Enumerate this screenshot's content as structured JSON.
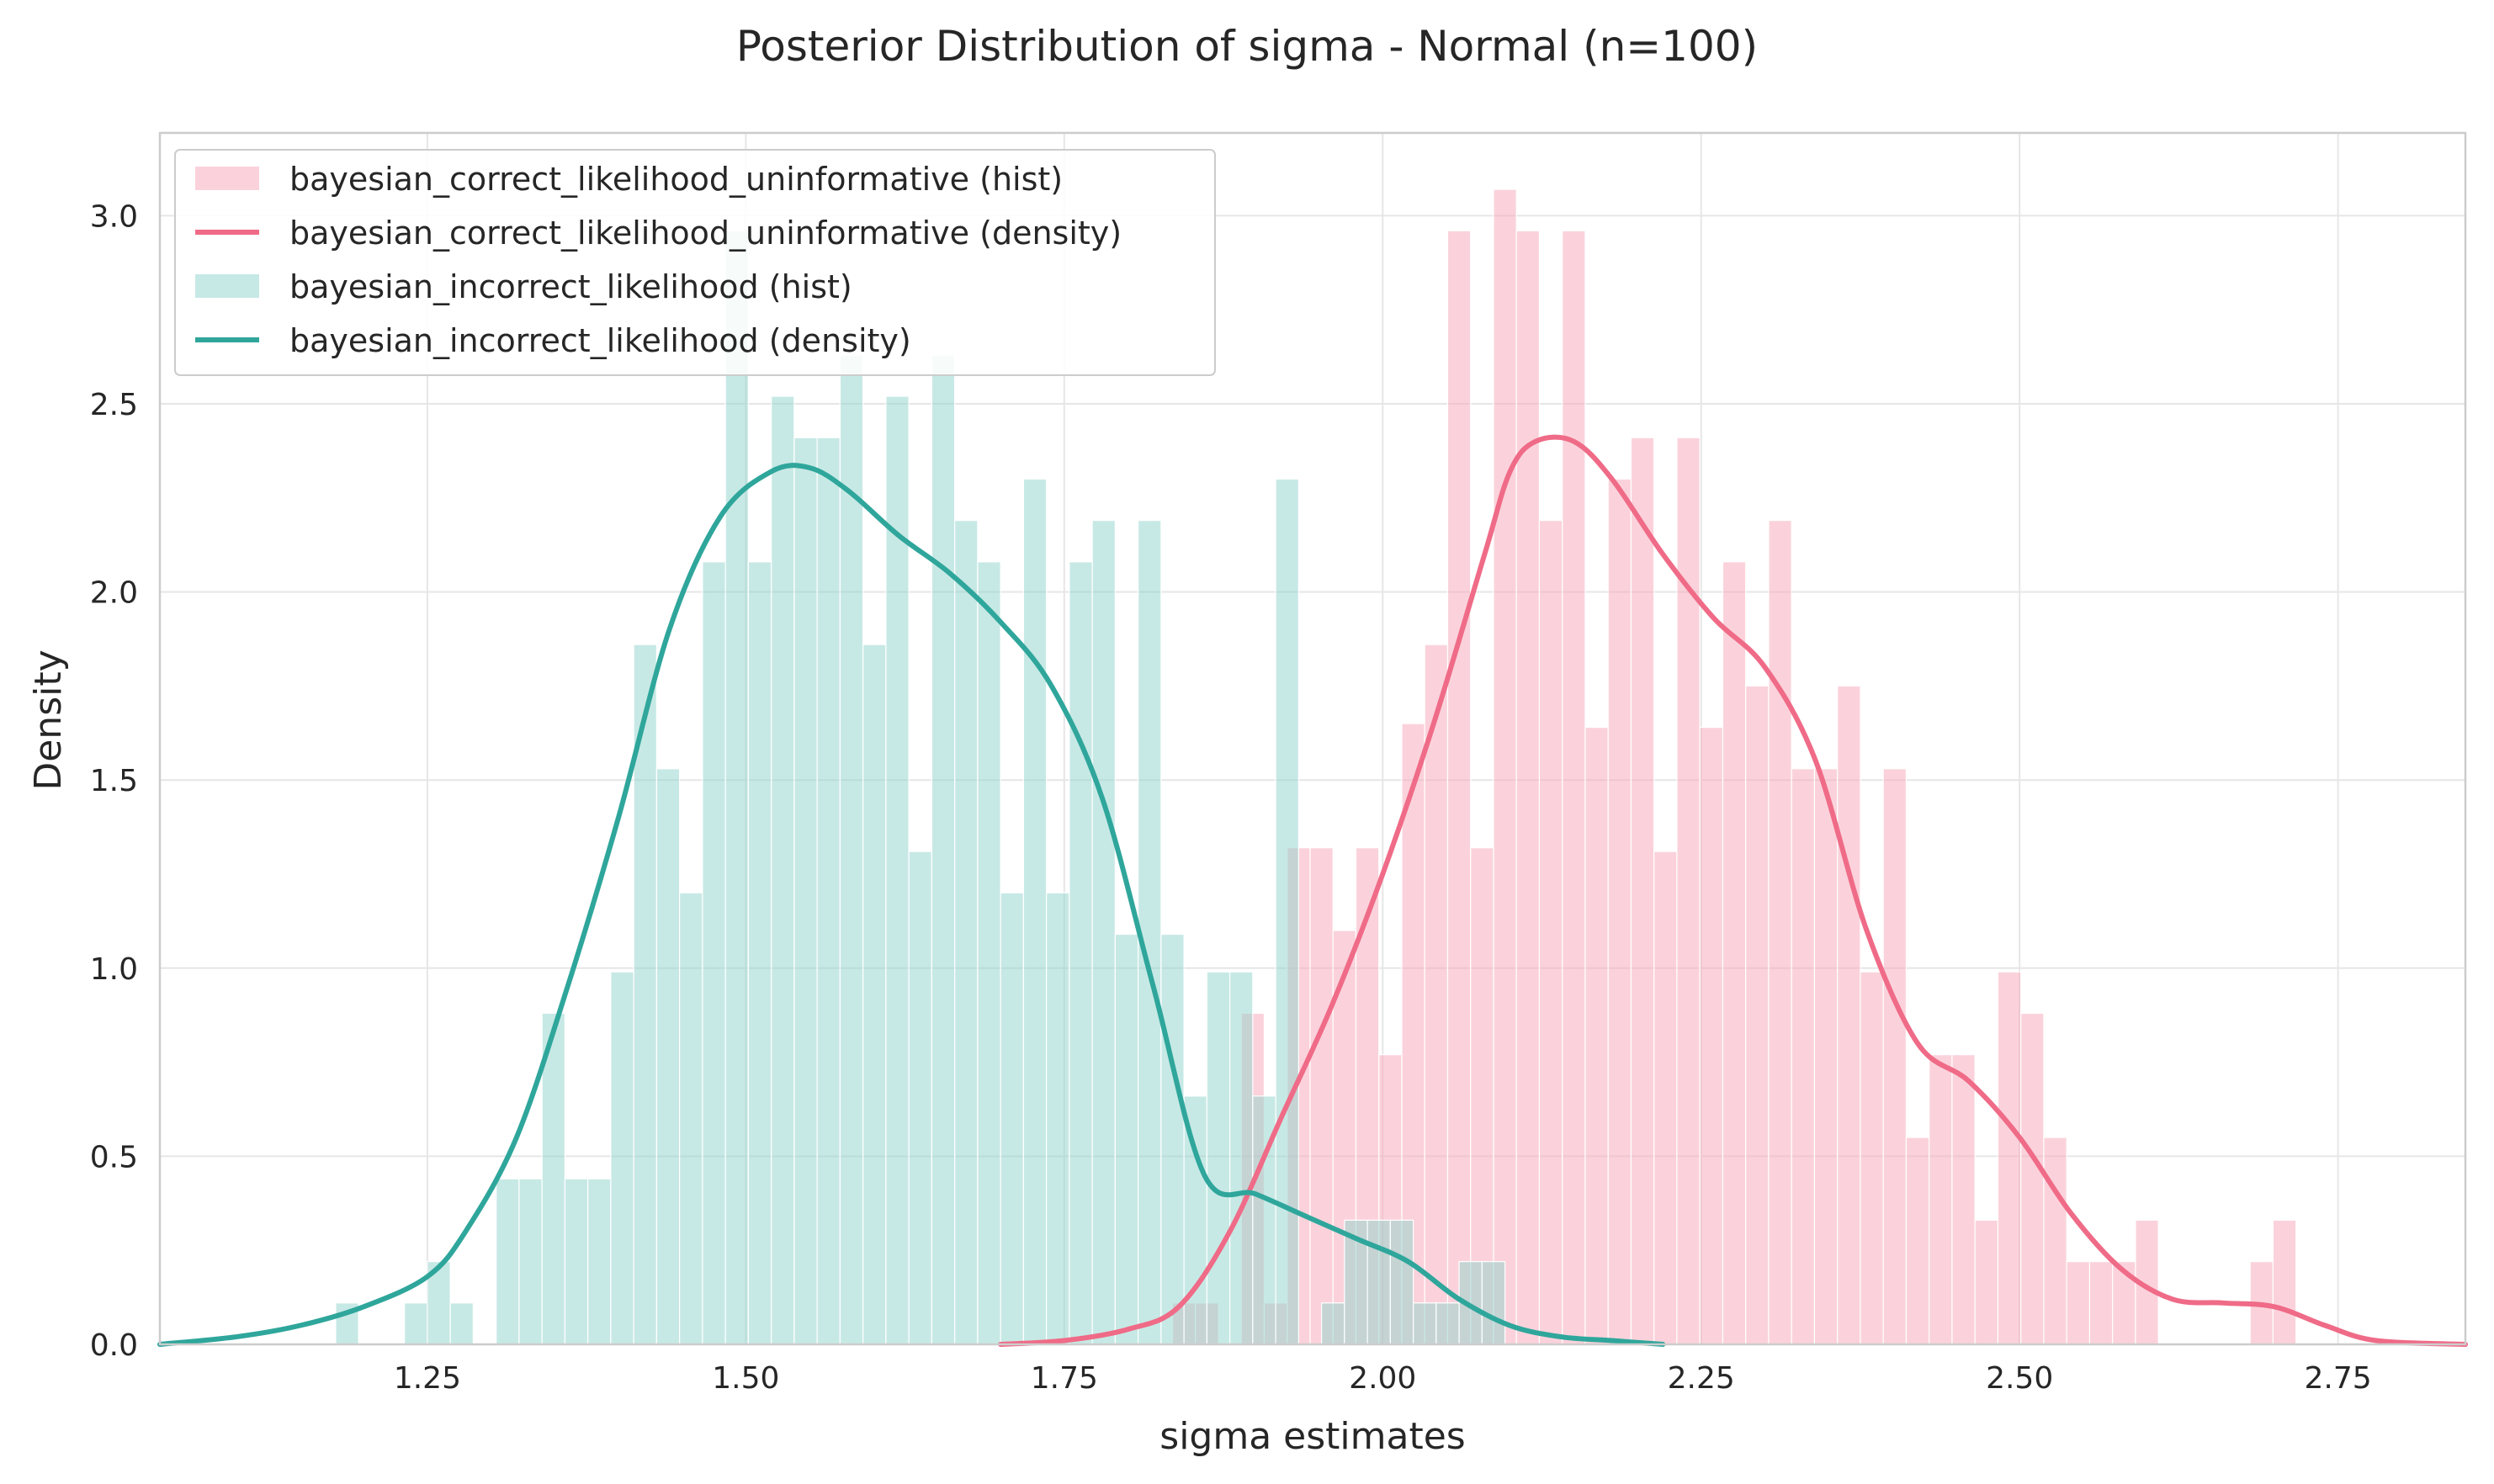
{
  "chart_data": {
    "type": "bar",
    "title": "Posterior Distribution of sigma - Normal (n=100)",
    "xlabel": "sigma estimates",
    "ylabel": "Density",
    "xlim": [
      1.04,
      2.85
    ],
    "ylim": [
      0.0,
      3.22
    ],
    "xticks": [
      1.25,
      1.5,
      1.75,
      2.0,
      2.25,
      2.5,
      2.75
    ],
    "xtick_labels": [
      "1.25",
      "1.50",
      "1.75",
      "2.00",
      "2.25",
      "2.50",
      "2.75"
    ],
    "yticks": [
      0.0,
      0.5,
      1.0,
      1.5,
      2.0,
      2.5,
      3.0
    ],
    "ytick_labels": [
      "0.0",
      "0.5",
      "1.0",
      "1.5",
      "2.0",
      "2.5",
      "3.0"
    ],
    "grid": true,
    "legend_position": "top-left",
    "series": [
      {
        "name": "bayesian_correct_likelihood_uninformative (hist)",
        "kind": "hist",
        "color": "#f7a6b8",
        "bin_width": 0.018,
        "bins_start": [
          1.835,
          1.853,
          1.871,
          1.889,
          1.907,
          1.925,
          1.943,
          1.961,
          1.979,
          1.997,
          2.015,
          2.033,
          2.051,
          2.069,
          2.087,
          2.105,
          2.123,
          2.141,
          2.159,
          2.177,
          2.195,
          2.213,
          2.231,
          2.249,
          2.267,
          2.285,
          2.303,
          2.321,
          2.339,
          2.357,
          2.375,
          2.393,
          2.411,
          2.429,
          2.447,
          2.465,
          2.483,
          2.501,
          2.519,
          2.537,
          2.555,
          2.573,
          2.591,
          2.609,
          2.627,
          2.645,
          2.663,
          2.681,
          2.699
        ],
        "values": [
          0.11,
          0.11,
          0.0,
          0.88,
          0.11,
          1.32,
          1.32,
          1.1,
          1.32,
          0.77,
          1.65,
          1.86,
          2.96,
          1.32,
          3.07,
          2.96,
          2.19,
          2.96,
          1.64,
          2.3,
          2.41,
          1.31,
          2.41,
          1.64,
          2.08,
          1.75,
          2.19,
          1.53,
          1.53,
          1.75,
          0.99,
          1.53,
          0.55,
          0.77,
          0.77,
          0.33,
          0.99,
          0.88,
          0.55,
          0.22,
          0.22,
          0.22,
          0.33,
          0.0,
          0.0,
          0.0,
          0.0,
          0.22,
          0.33
        ]
      },
      {
        "name": "bayesian_correct_likelihood_uninformative (density)",
        "kind": "density",
        "color": "#ef6b87",
        "x": [
          1.7,
          1.75,
          1.8,
          1.84,
          1.88,
          1.92,
          1.96,
          2.0,
          2.04,
          2.08,
          2.1,
          2.12,
          2.15,
          2.18,
          2.22,
          2.26,
          2.3,
          2.34,
          2.38,
          2.42,
          2.46,
          2.5,
          2.54,
          2.58,
          2.62,
          2.66,
          2.7,
          2.74,
          2.78,
          2.85
        ],
        "y": [
          0.0,
          0.01,
          0.04,
          0.1,
          0.3,
          0.6,
          0.9,
          1.25,
          1.65,
          2.1,
          2.32,
          2.4,
          2.4,
          2.3,
          2.1,
          1.93,
          1.8,
          1.55,
          1.1,
          0.8,
          0.7,
          0.55,
          0.35,
          0.2,
          0.12,
          0.11,
          0.1,
          0.05,
          0.01,
          0.0
        ]
      },
      {
        "name": "bayesian_incorrect_likelihood (hist)",
        "kind": "hist",
        "color": "#8fd3cb",
        "bin_width": 0.018,
        "bins_start": [
          1.178,
          1.196,
          1.214,
          1.232,
          1.25,
          1.268,
          1.286,
          1.304,
          1.322,
          1.34,
          1.358,
          1.376,
          1.394,
          1.412,
          1.43,
          1.448,
          1.466,
          1.484,
          1.502,
          1.52,
          1.538,
          1.556,
          1.574,
          1.592,
          1.61,
          1.628,
          1.646,
          1.664,
          1.682,
          1.7,
          1.718,
          1.736,
          1.754,
          1.772,
          1.79,
          1.808,
          1.826,
          1.844,
          1.862,
          1.88,
          1.898,
          1.916,
          1.934,
          1.952,
          1.97,
          1.988,
          2.006,
          2.024,
          2.042,
          2.06,
          2.078
        ],
        "values": [
          0.11,
          0.0,
          0.0,
          0.11,
          0.22,
          0.11,
          0.0,
          0.44,
          0.44,
          0.88,
          0.44,
          0.44,
          0.99,
          1.86,
          1.53,
          1.2,
          2.08,
          2.96,
          2.08,
          2.52,
          2.41,
          2.41,
          2.63,
          1.86,
          2.52,
          1.31,
          2.63,
          2.19,
          2.08,
          1.2,
          2.3,
          1.2,
          2.08,
          2.19,
          1.09,
          2.19,
          1.09,
          0.66,
          0.99,
          0.99,
          0.66,
          2.3,
          0.0,
          0.11,
          0.33,
          0.33,
          0.33,
          0.11,
          0.11,
          0.22,
          0.22
        ]
      },
      {
        "name": "bayesian_incorrect_likelihood (density)",
        "kind": "density",
        "color": "#2fa69b",
        "x": [
          1.04,
          1.1,
          1.15,
          1.2,
          1.25,
          1.28,
          1.32,
          1.36,
          1.4,
          1.44,
          1.48,
          1.52,
          1.55,
          1.58,
          1.62,
          1.66,
          1.7,
          1.74,
          1.78,
          1.82,
          1.86,
          1.9,
          1.94,
          1.98,
          2.02,
          2.06,
          2.1,
          2.14,
          2.18,
          2.22
        ],
        "y": [
          0.0,
          0.02,
          0.05,
          0.1,
          0.18,
          0.3,
          0.55,
          0.95,
          1.4,
          1.9,
          2.2,
          2.32,
          2.33,
          2.27,
          2.15,
          2.05,
          1.92,
          1.75,
          1.45,
          0.95,
          0.45,
          0.4,
          0.34,
          0.28,
          0.22,
          0.12,
          0.05,
          0.02,
          0.01,
          0.0
        ]
      }
    ]
  }
}
